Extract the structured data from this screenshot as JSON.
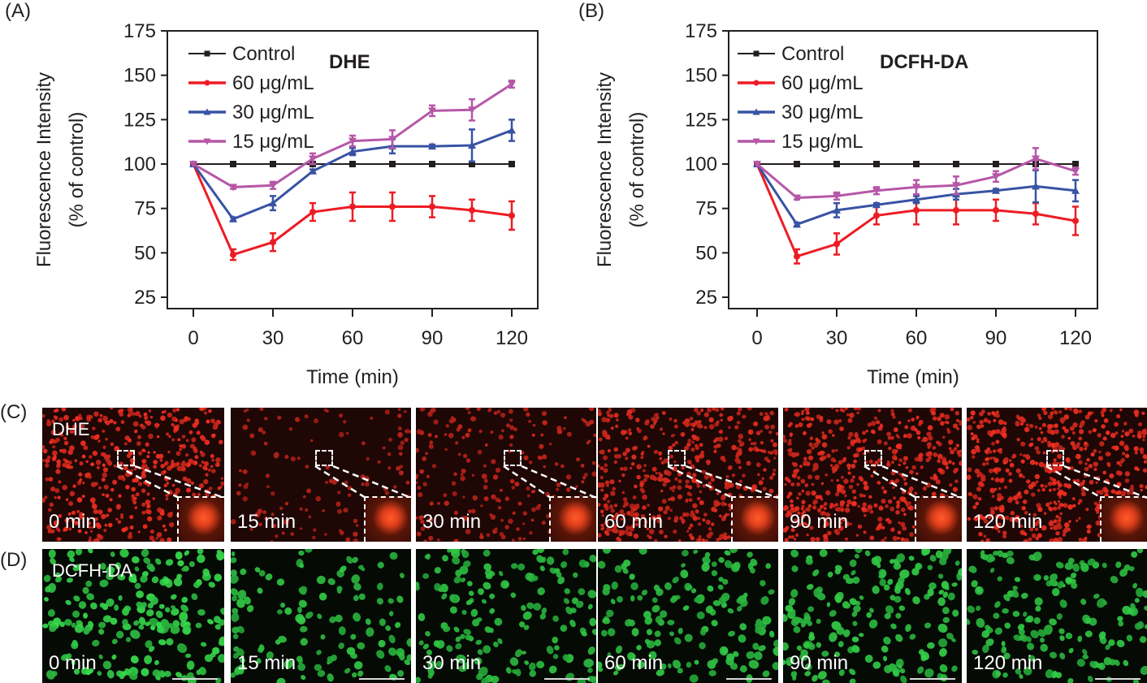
{
  "panels": {
    "A": "(A)",
    "B": "(B)",
    "C": "(C)",
    "D": "(D)"
  },
  "chart_data": [
    {
      "type": "line",
      "id": "A",
      "title": "DHE",
      "xlabel": "Time (min)",
      "ylabel_line1": "Fluorescence Intensity",
      "ylabel_line2": "(% of control)",
      "xlim": [
        0,
        120
      ],
      "ylim": [
        25,
        175
      ],
      "xticks": [
        0,
        30,
        60,
        90,
        120
      ],
      "yticks": [
        25,
        50,
        75,
        100,
        125,
        150,
        175
      ],
      "grid": false,
      "legend_position": "top-left",
      "x": [
        0,
        15,
        30,
        45,
        60,
        75,
        90,
        105,
        120
      ],
      "series": [
        {
          "name": "Control",
          "color": "#231f20",
          "marker": "square",
          "values": [
            100,
            100,
            100,
            100,
            100,
            100,
            100,
            100,
            100
          ],
          "errors": [
            0,
            0,
            0,
            0,
            0,
            0,
            0,
            0,
            0
          ]
        },
        {
          "name": "60 μg/mL",
          "color": "#ed1c24",
          "marker": "circle",
          "values": [
            100,
            49,
            56,
            73,
            76,
            76,
            76,
            74,
            71
          ],
          "errors": [
            0,
            3,
            5,
            5,
            8,
            8,
            6,
            6,
            8
          ]
        },
        {
          "name": "30 μg/mL",
          "color": "#3853a4",
          "marker": "triangle-up",
          "values": [
            100,
            69,
            78,
            96,
            107,
            110,
            110,
            110.5,
            119
          ],
          "errors": [
            0,
            1,
            4,
            1,
            2,
            4,
            1,
            9,
            6
          ]
        },
        {
          "name": "15 μg/mL",
          "color": "#b657a8",
          "marker": "triangle-down",
          "values": [
            100,
            87,
            88,
            103,
            113,
            114,
            130,
            130.5,
            145
          ],
          "errors": [
            0,
            1,
            2,
            3,
            3,
            5,
            3,
            6,
            2
          ]
        }
      ]
    },
    {
      "type": "line",
      "id": "B",
      "title": "DCFH-DA",
      "xlabel": "Time (min)",
      "ylabel_line1": "Fluorescence Intensity",
      "ylabel_line2": "(% of control)",
      "xlim": [
        0,
        120
      ],
      "ylim": [
        25,
        175
      ],
      "xticks": [
        0,
        30,
        60,
        90,
        120
      ],
      "yticks": [
        25,
        50,
        75,
        100,
        125,
        150,
        175
      ],
      "grid": false,
      "legend_position": "top-left",
      "x": [
        0,
        15,
        30,
        45,
        60,
        75,
        90,
        105,
        120
      ],
      "series": [
        {
          "name": "Control",
          "color": "#231f20",
          "marker": "square",
          "values": [
            100,
            100,
            100,
            100,
            100,
            100,
            100,
            100,
            100
          ],
          "errors": [
            0,
            0,
            0,
            0,
            0,
            0,
            0,
            0,
            0
          ]
        },
        {
          "name": "60 μg/mL",
          "color": "#ed1c24",
          "marker": "circle",
          "values": [
            100,
            48,
            55,
            71,
            74,
            74,
            74,
            72,
            68
          ],
          "errors": [
            0,
            4,
            6,
            5,
            8,
            8,
            6,
            6,
            8
          ]
        },
        {
          "name": "30 μg/mL",
          "color": "#3853a4",
          "marker": "triangle-up",
          "values": [
            100,
            66,
            74,
            77,
            80,
            83,
            85,
            87.5,
            85
          ],
          "errors": [
            0,
            1,
            4,
            1,
            2,
            3,
            1,
            9,
            6
          ]
        },
        {
          "name": "15 μg/mL",
          "color": "#b657a8",
          "marker": "triangle-down",
          "values": [
            100,
            81,
            82,
            85,
            87,
            88,
            93,
            103,
            96
          ],
          "errors": [
            0,
            1,
            2,
            2,
            4,
            5,
            3,
            6,
            2
          ]
        }
      ]
    }
  ],
  "micrographs": {
    "dhe": {
      "probe_label": "DHE",
      "frames": [
        {
          "time": "0 min",
          "density": 0.9,
          "brightness": 1.0
        },
        {
          "time": "15 min",
          "density": 0.25,
          "brightness": 0.55
        },
        {
          "time": "30 min",
          "density": 0.4,
          "brightness": 0.65
        },
        {
          "time": "60 min",
          "density": 0.95,
          "brightness": 0.85
        },
        {
          "time": "90 min",
          "density": 1.0,
          "brightness": 0.95
        },
        {
          "time": "120 min",
          "density": 1.0,
          "brightness": 1.0
        }
      ]
    },
    "dcfh": {
      "probe_label": "DCFH-DA",
      "frames": [
        {
          "time": "0 min",
          "density": 1.0,
          "brightness": 1.0
        },
        {
          "time": "15 min",
          "density": 0.6,
          "brightness": 0.8
        },
        {
          "time": "30 min",
          "density": 0.8,
          "brightness": 0.75
        },
        {
          "time": "60 min",
          "density": 0.75,
          "brightness": 0.8
        },
        {
          "time": "90 min",
          "density": 0.9,
          "brightness": 0.85
        },
        {
          "time": "120 min",
          "density": 0.8,
          "brightness": 0.8
        }
      ]
    }
  }
}
